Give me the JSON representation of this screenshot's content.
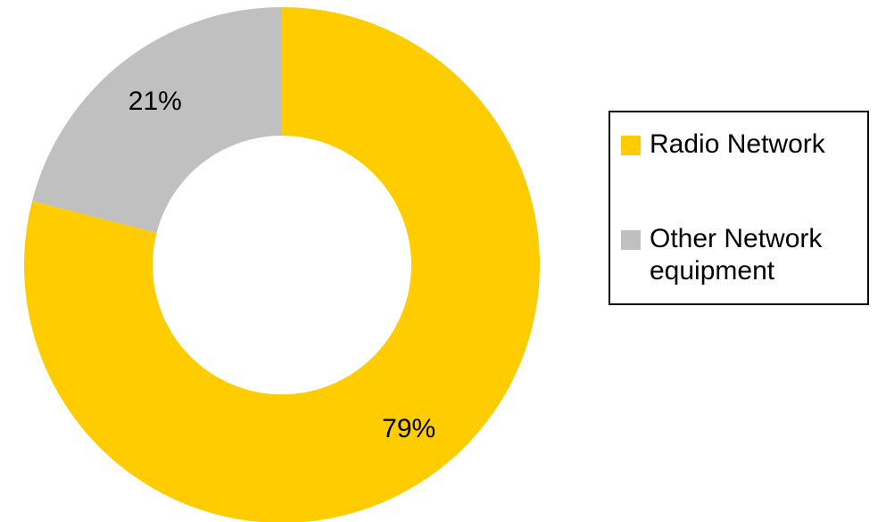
{
  "chart_data": {
    "type": "pie",
    "style": "donut",
    "title": "",
    "categories": [
      "Radio Network",
      "Other Network equipment"
    ],
    "values": [
      79,
      21
    ],
    "unit": "%",
    "data_labels": [
      "79%",
      "21%"
    ],
    "colors": [
      "#FFCC00",
      "#C0C0C0"
    ],
    "legend": {
      "position": "right",
      "entries": [
        {
          "label": "Radio Network",
          "color": "#FFCC00"
        },
        {
          "label": "Other Network equipment",
          "color": "#C0C0C0"
        }
      ]
    }
  }
}
